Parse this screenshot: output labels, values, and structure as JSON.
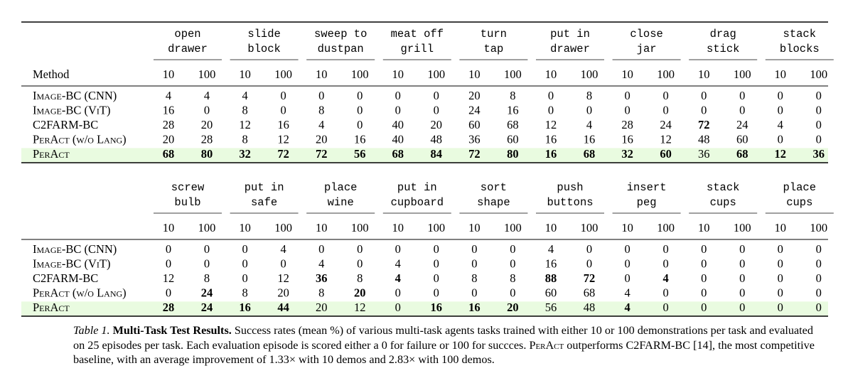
{
  "tables": [
    {
      "tasks": [
        [
          "open",
          "drawer"
        ],
        [
          "slide",
          "block"
        ],
        [
          "sweep to",
          "dustpan"
        ],
        [
          "meat off",
          "grill"
        ],
        [
          "turn",
          "tap"
        ],
        [
          "put in",
          "drawer"
        ],
        [
          "close",
          "jar"
        ],
        [
          "drag",
          "stick"
        ],
        [
          "stack",
          "blocks"
        ]
      ],
      "method_label": "Method",
      "demos": [
        "10",
        "100"
      ],
      "rows": [
        {
          "method": "Image-BC (CNN)",
          "values": [
            4,
            4,
            4,
            0,
            0,
            0,
            0,
            0,
            20,
            8,
            0,
            8,
            0,
            0,
            0,
            0,
            0,
            0
          ],
          "bold": []
        },
        {
          "method": "Image-BC (ViT)",
          "values": [
            16,
            0,
            8,
            0,
            8,
            0,
            0,
            0,
            24,
            16,
            0,
            0,
            0,
            0,
            0,
            0,
            0,
            0
          ],
          "bold": []
        },
        {
          "method": "C2FARM-BC",
          "values": [
            28,
            20,
            12,
            16,
            4,
            0,
            40,
            20,
            60,
            68,
            12,
            4,
            28,
            24,
            72,
            24,
            4,
            0
          ],
          "bold": [
            14
          ]
        },
        {
          "method": "PerAct (w/o Lang)",
          "values": [
            20,
            28,
            8,
            12,
            20,
            16,
            40,
            48,
            36,
            60,
            16,
            16,
            16,
            12,
            48,
            60,
            0,
            0
          ],
          "bold": []
        },
        {
          "method": "PerAct",
          "values": [
            68,
            80,
            32,
            72,
            72,
            56,
            68,
            84,
            72,
            80,
            16,
            68,
            32,
            60,
            36,
            68,
            12,
            36
          ],
          "bold": [
            0,
            1,
            2,
            3,
            4,
            5,
            6,
            7,
            8,
            9,
            10,
            11,
            12,
            13,
            15,
            16,
            17
          ],
          "highlight": true
        }
      ]
    },
    {
      "tasks": [
        [
          "screw",
          "bulb"
        ],
        [
          "put in",
          "safe"
        ],
        [
          "place",
          "wine"
        ],
        [
          "put in",
          "cupboard"
        ],
        [
          "sort",
          "shape"
        ],
        [
          "push",
          "buttons"
        ],
        [
          "insert",
          "peg"
        ],
        [
          "stack",
          "cups"
        ],
        [
          "place",
          "cups"
        ]
      ],
      "demos": [
        "10",
        "100"
      ],
      "rows": [
        {
          "method": "Image-BC (CNN)",
          "values": [
            0,
            0,
            0,
            4,
            0,
            0,
            0,
            0,
            0,
            0,
            4,
            0,
            0,
            0,
            0,
            0,
            0,
            0
          ],
          "bold": []
        },
        {
          "method": "Image-BC (ViT)",
          "values": [
            0,
            0,
            0,
            0,
            4,
            0,
            4,
            0,
            0,
            0,
            16,
            0,
            0,
            0,
            0,
            0,
            0,
            0
          ],
          "bold": []
        },
        {
          "method": "C2FARM-BC",
          "values": [
            12,
            8,
            0,
            12,
            36,
            8,
            4,
            0,
            8,
            8,
            88,
            72,
            0,
            4,
            0,
            0,
            0,
            0
          ],
          "bold": [
            4,
            6,
            10,
            11,
            13
          ]
        },
        {
          "method": "PerAct (w/o Lang)",
          "values": [
            0,
            24,
            8,
            20,
            8,
            20,
            0,
            0,
            0,
            0,
            60,
            68,
            4,
            0,
            0,
            0,
            0,
            0
          ],
          "bold": [
            1,
            5
          ]
        },
        {
          "method": "PerAct",
          "values": [
            28,
            24,
            16,
            44,
            20,
            12,
            0,
            16,
            16,
            20,
            56,
            48,
            4,
            0,
            0,
            0,
            0,
            0
          ],
          "bold": [
            0,
            1,
            2,
            3,
            7,
            8,
            9,
            12
          ],
          "highlight": true
        }
      ]
    }
  ],
  "caption": {
    "label": "Table 1.",
    "title": "Multi-Task Test Results.",
    "parts": [
      "Success rates (mean %) of various multi-task agents tasks trained with either 10 or 100 demonstrations per task and evaluated on 25 episodes per task. Each evaluation episode is scored either a 0 for failure or 100 for succces.",
      "PerAct",
      "outperforms C2FARM-BC [14], the most competitive baseline, with an average improvement of 1.33× with 10 demos and 2.83× with 100 demos."
    ]
  }
}
